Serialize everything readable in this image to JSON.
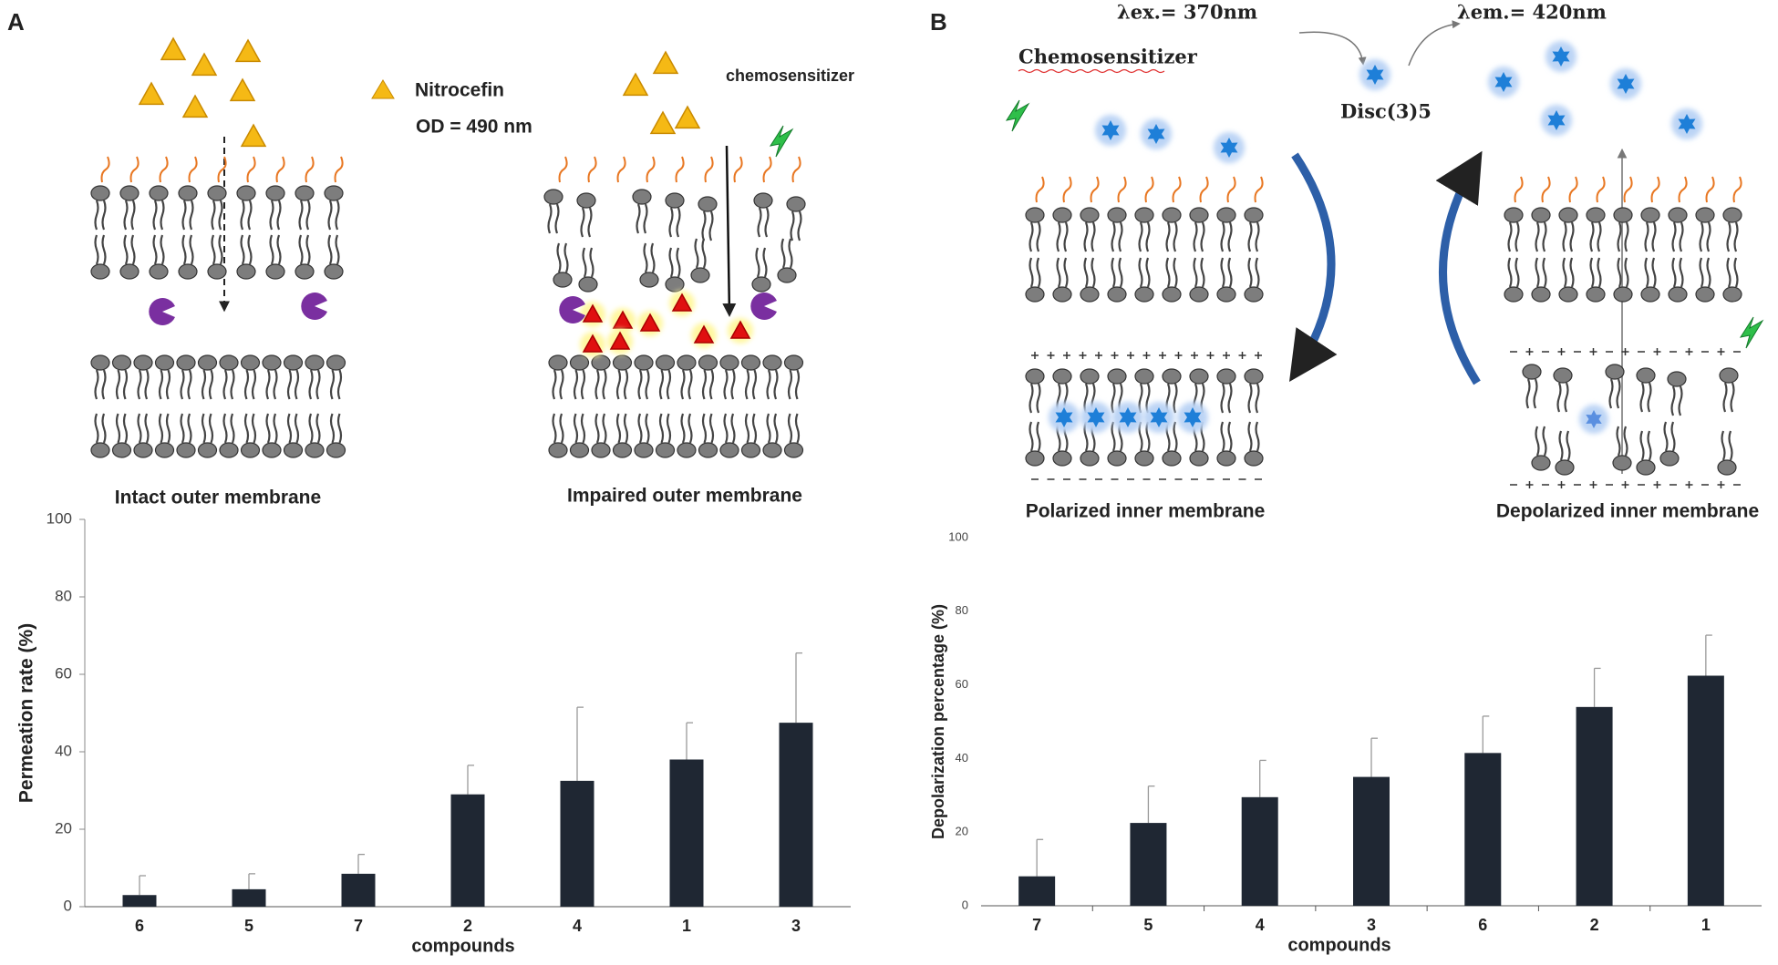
{
  "labels": {
    "panel_a": "A",
    "panel_b": "B",
    "nitrocefin": "Nitrocefin",
    "od": "OD = 490 nm",
    "chemosensitizer_a": "chemosensitizer",
    "intact": "Intact outer membrane",
    "impaired": "Impaired outer membrane",
    "chemosensitizer_b": "Chemosensitizer",
    "ex": "λex.= 370nm",
    "em": "λem.= 420nm",
    "dye": "Disc(3)5",
    "polarized": "Polarized inner membrane",
    "depolarized": "Depolarized inner membrane"
  },
  "chart_data": [
    {
      "type": "bar",
      "categories": [
        "6",
        "5",
        "7",
        "2",
        "4",
        "1",
        "3"
      ],
      "values": [
        3,
        4.5,
        8.5,
        29,
        32.5,
        38,
        47.5
      ],
      "errors": [
        5,
        4,
        5,
        7.5,
        19,
        9.5,
        18
      ],
      "color": "#1f2733",
      "ylim": [
        0,
        100
      ],
      "yticks": [
        0,
        20,
        40,
        60,
        80,
        100
      ],
      "y_label": "Permeation rate (%)",
      "x_label": "compounds"
    },
    {
      "type": "bar",
      "categories": [
        "7",
        "5",
        "4",
        "3",
        "6",
        "2",
        "1"
      ],
      "values": [
        8,
        22.5,
        29.5,
        35,
        41.5,
        54,
        62.5
      ],
      "errors": [
        10,
        10,
        10,
        10.5,
        10,
        10.5,
        11
      ],
      "color": "#1f2733",
      "ylim": [
        0,
        100
      ],
      "yticks": [
        0,
        20,
        40,
        60,
        80,
        100
      ],
      "y_label": "Depolarization percentage (%)",
      "x_label": "compounds"
    }
  ]
}
